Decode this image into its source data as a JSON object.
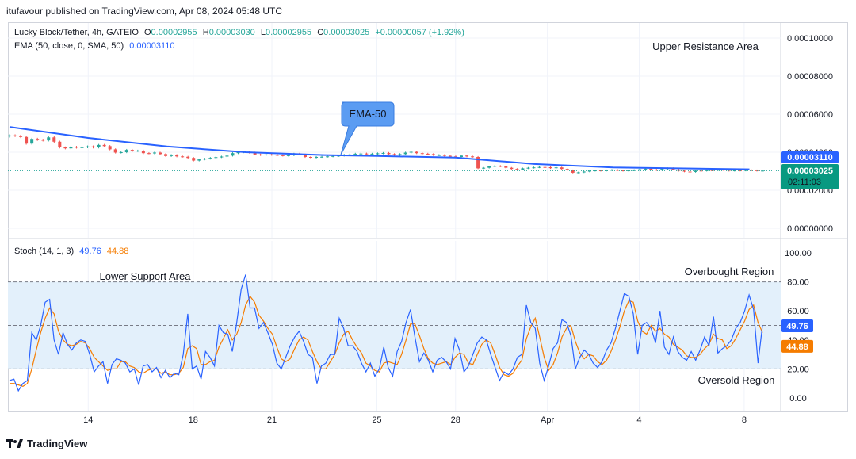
{
  "publisher_line": "itufavour published on TradingView.com, Apr 08, 2024 05:48 UTC",
  "legend": {
    "symbol": "Lucky Block/Tether, 4h, GATEIO",
    "o_label": "O",
    "o_val": "0.00002955",
    "h_label": "H",
    "h_val": "0.00003030",
    "l_label": "L",
    "l_val": "0.00002955",
    "c_label": "C",
    "c_val": "0.00003025",
    "change": "+0.00000057 (+1.92%)",
    "ema_label": "EMA (50, close, 0, SMA, 50)",
    "ema_val": "0.00003110",
    "stoch_label": "Stoch (14, 1, 3)",
    "stoch_k_val": "49.76",
    "stoch_d_val": "44.88"
  },
  "annotations": {
    "upper_resistance": "Upper Resistance Area",
    "ema_callout": "EMA-50",
    "lower_support": "Lower Support Area",
    "overbought": "Overbought Region",
    "oversold": "Oversold Region"
  },
  "price_badges": {
    "ema": "0.00003110",
    "last": "0.00003025",
    "countdown": "02:11:03"
  },
  "stoch_badges": {
    "k": "49.76",
    "d": "44.88"
  },
  "colors": {
    "up": "#26a69a",
    "down": "#ef5350",
    "ema": "#2962ff",
    "stoch_k": "#2962ff",
    "stoch_d": "#f57c00",
    "band_fill": "#e3f0fb",
    "callout": "#5b9cf2"
  },
  "logo_text": "TradingView",
  "chart_data": [
    {
      "type": "candlestick",
      "title": "Lucky Block/Tether, 4h, GATEIO",
      "y_ticks": [
        "0.00010000",
        "0.00008000",
        "0.00006000",
        "0.00004000",
        "0.00002000",
        "0.00000000"
      ],
      "ylim": [
        0,
        0.0001
      ],
      "x_ticks": [
        "14",
        "18",
        "21",
        "25",
        "28",
        "Apr",
        "4",
        "8"
      ],
      "x_tick_days": [
        3,
        7,
        10,
        14,
        17,
        20.5,
        24,
        28
      ],
      "x_range_days": [
        0,
        29
      ],
      "candle_closes": [
        4.88e-05,
        4.86e-05,
        4.8e-05,
        4.45e-05,
        4.7e-05,
        4.65e-05,
        4.62e-05,
        4.78e-05,
        4.55e-05,
        4.25e-05,
        4.2e-05,
        4.28e-05,
        4.24e-05,
        4.26e-05,
        4.3e-05,
        4.25e-05,
        4.38e-05,
        4.32e-05,
        4.15e-05,
        3.98e-05,
        4e-05,
        4.12e-05,
        4.06e-05,
        4.08e-05,
        3.95e-05,
        3.94e-05,
        3.98e-05,
        3.9e-05,
        3.8e-05,
        3.85e-05,
        3.78e-05,
        3.76e-05,
        3.7e-05,
        3.56e-05,
        3.62e-05,
        3.66e-05,
        3.7e-05,
        3.74e-05,
        3.77e-05,
        3.82e-05,
        3.95e-05,
        4e-05,
        4.02e-05,
        3.98e-05,
        3.88e-05,
        3.85e-05,
        3.88e-05,
        3.86e-05,
        3.84e-05,
        3.82e-05,
        3.84e-05,
        3.92e-05,
        3.88e-05,
        3.75e-05,
        3.72e-05,
        3.75e-05,
        3.76e-05,
        3.78e-05,
        3.8e-05,
        3.82e-05,
        3.86e-05,
        3.88e-05,
        3.92e-05,
        3.93e-05,
        3.9e-05,
        3.92e-05,
        3.94e-05,
        3.96e-05,
        3.9e-05,
        3.85e-05,
        3.9e-05,
        3.98e-05,
        4.02e-05,
        3.95e-05,
        3.92e-05,
        3.9e-05,
        3.85e-05,
        3.85e-05,
        3.81e-05,
        3.78e-05,
        3.75e-05,
        3.82e-05,
        3.78e-05,
        3.75e-05,
        3.15e-05,
        3.18e-05,
        3.25e-05,
        3.28e-05,
        3.25e-05,
        3.18e-05,
        3.12e-05,
        3.08e-05,
        3.15e-05,
        3.18e-05,
        3.2e-05,
        3.22e-05,
        3.21e-05,
        3.16e-05,
        3.2e-05,
        3.12e-05,
        3.05e-05,
        2.92e-05,
        2.94e-05,
        2.98e-05,
        3.02e-05,
        3.04e-05,
        3.02e-05,
        3.05e-05,
        3.07e-05,
        3.04e-05,
        3.02e-05,
        3.04e-05,
        3.06e-05,
        3.1e-05,
        3.13e-05,
        3.08e-05,
        3.05e-05,
        3.12e-05,
        3.16e-05,
        3.08e-05,
        3.02e-05,
        2.98e-05,
        2.96e-05,
        3.03e-05,
        3.02e-05,
        3.05e-05,
        3.04e-05,
        3.08e-05,
        3.06e-05,
        3.02e-05,
        3.04e-05,
        3.03e-05,
        3.06e-05,
        3.05e-05,
        3.02e-05,
        3.03e-05
      ],
      "series": [
        {
          "name": "EMA (50, close, 0, SMA, 50)",
          "x": [
            0,
            3,
            6,
            9,
            12,
            14,
            17,
            20,
            23,
            26,
            28.2
          ],
          "y": [
            5.33e-05,
            4.75e-05,
            4.3e-05,
            4e-05,
            3.85e-05,
            3.8e-05,
            3.72e-05,
            3.38e-05,
            3.2e-05,
            3.14e-05,
            3.1e-05
          ]
        }
      ],
      "last_price": 3.025e-05,
      "ema_last": 3.11e-05
    },
    {
      "type": "line",
      "title": "Stoch (14, 1, 3)",
      "y_ticks": [
        "100.00",
        "80.00",
        "60.00",
        "40.00",
        "20.00",
        "0.00"
      ],
      "ylim": [
        -4,
        108
      ],
      "bands": {
        "upper": 80,
        "middle": 50,
        "lower": 20
      },
      "series": [
        {
          "name": "%K",
          "values": [
            12,
            13,
            5,
            10,
            12,
            45,
            40,
            50,
            66,
            68,
            40,
            30,
            45,
            37,
            33,
            38,
            40,
            39,
            30,
            18,
            22,
            25,
            10,
            23,
            27,
            26,
            24,
            18,
            20,
            9,
            22,
            23,
            18,
            21,
            14,
            19,
            14,
            17,
            16,
            30,
            58,
            20,
            22,
            13,
            32,
            28,
            22,
            50,
            45,
            44,
            32,
            52,
            75,
            85,
            62,
            62,
            48,
            52,
            45,
            37,
            24,
            20,
            28,
            36,
            42,
            46,
            39,
            30,
            28,
            10,
            22,
            24,
            30,
            30,
            55,
            48,
            36,
            36,
            32,
            24,
            18,
            24,
            15,
            20,
            35,
            21,
            15,
            32,
            39,
            52,
            61,
            42,
            25,
            31,
            26,
            18,
            26,
            28,
            25,
            20,
            41,
            33,
            18,
            22,
            30,
            38,
            42,
            40,
            30,
            21,
            12,
            18,
            16,
            20,
            28,
            30,
            64,
            52,
            48,
            24,
            12,
            22,
            34,
            38,
            54,
            52,
            43,
            20,
            28,
            33,
            30,
            24,
            21,
            25,
            33,
            38,
            48,
            60,
            72,
            70,
            58,
            30,
            50,
            52,
            48,
            38,
            60,
            35,
            30,
            42,
            32,
            28,
            26,
            32,
            26,
            33,
            42,
            36,
            56,
            31,
            34,
            36,
            40,
            48,
            52,
            60,
            71,
            61,
            24,
            50
          ]
        },
        {
          "name": "%D",
          "values": [
            10,
            10,
            9,
            8,
            10,
            20,
            33,
            45,
            55,
            62,
            58,
            46,
            40,
            37,
            36,
            37,
            39,
            38,
            34,
            28,
            25,
            22,
            19,
            20,
            20,
            25,
            25,
            22,
            21,
            18,
            17,
            19,
            20,
            20,
            17,
            18,
            16,
            16,
            17,
            21,
            34,
            36,
            34,
            23,
            23,
            25,
            26,
            35,
            41,
            47,
            40,
            44,
            52,
            64,
            70,
            66,
            57,
            53,
            48,
            44,
            35,
            27,
            25,
            27,
            34,
            40,
            42,
            40,
            32,
            25,
            20,
            20,
            25,
            30,
            38,
            44,
            46,
            40,
            35,
            31,
            24,
            22,
            19,
            18,
            24,
            25,
            24,
            23,
            30,
            40,
            51,
            51,
            43,
            34,
            27,
            24,
            23,
            24,
            25,
            23,
            28,
            31,
            30,
            24,
            23,
            30,
            37,
            40,
            38,
            30,
            21,
            16,
            15,
            17,
            22,
            26,
            41,
            49,
            55,
            42,
            28,
            19,
            23,
            31,
            42,
            48,
            50,
            39,
            31,
            27,
            30,
            29,
            25,
            23,
            26,
            32,
            40,
            49,
            60,
            67,
            66,
            53,
            46,
            44,
            50,
            46,
            48,
            44,
            42,
            37,
            35,
            33,
            29,
            28,
            28,
            30,
            34,
            37,
            44,
            41,
            40,
            34,
            36,
            41,
            47,
            53,
            61,
            64,
            52,
            45
          ]
        }
      ],
      "k_last": 49.76,
      "d_last": 44.88
    }
  ]
}
